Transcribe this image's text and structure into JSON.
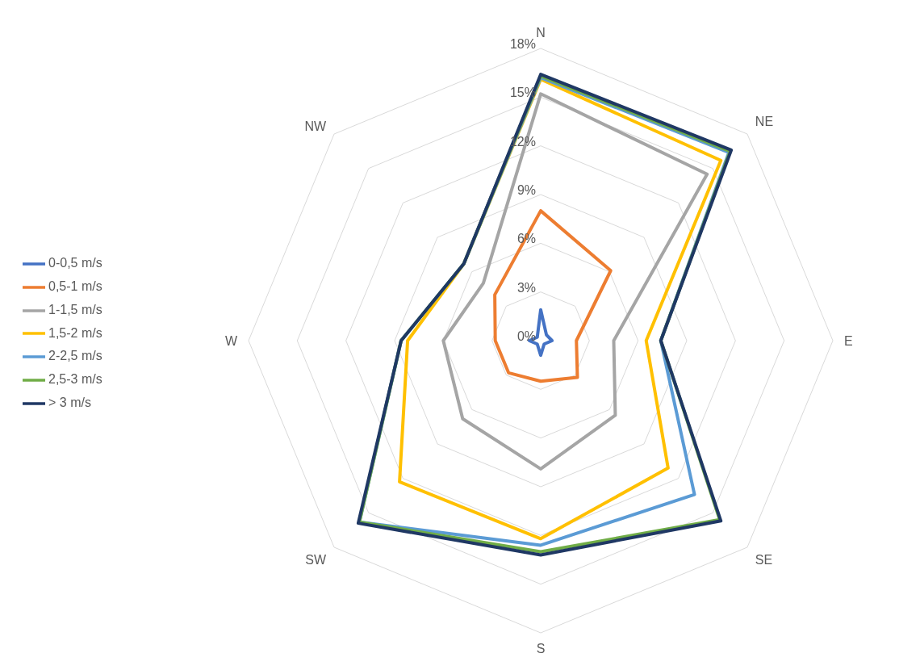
{
  "chart_data": {
    "type": "radar",
    "categories": [
      "N",
      "NE",
      "E",
      "SE",
      "S",
      "SW",
      "W",
      "NW"
    ],
    "series": [
      {
        "name": "0-0,5 m/s",
        "color": "#4472c4",
        "values": [
          1.9,
          0.5,
          0.7,
          0.3,
          0.9,
          0.3,
          0.7,
          0.3
        ]
      },
      {
        "name": "0,5-1 m/s",
        "color": "#ed7d31",
        "values": [
          8.0,
          6.1,
          2.2,
          3.2,
          2.5,
          2.8,
          2.8,
          4.0
        ]
      },
      {
        "name": "1-1,5 m/s",
        "color": "#a5a5a5",
        "values": [
          15.2,
          14.5,
          4.5,
          6.5,
          7.9,
          6.8,
          6.0,
          5.0
        ]
      },
      {
        "name": "1,5-2 m/s",
        "color": "#ffc000",
        "values": [
          16.1,
          15.7,
          6.5,
          11.1,
          12.2,
          12.3,
          8.2,
          6.7
        ]
      },
      {
        "name": "2-2,5 m/s",
        "color": "#5b9bd5",
        "values": [
          16.2,
          16.4,
          7.4,
          13.4,
          12.6,
          15.8,
          8.6,
          6.7
        ]
      },
      {
        "name": "2,5-3 m/s",
        "color": "#70ad47",
        "values": [
          16.3,
          16.5,
          7.4,
          15.6,
          13.0,
          15.8,
          8.6,
          6.7
        ]
      },
      {
        "name": "> 3 m/s",
        "color": "#1f3864",
        "values": [
          16.4,
          16.6,
          7.4,
          15.7,
          13.2,
          15.9,
          8.6,
          6.7
        ]
      }
    ],
    "ylim": [
      0,
      18
    ],
    "yticks": [
      {
        "value": 0,
        "label": "0%"
      },
      {
        "value": 3,
        "label": "3%"
      },
      {
        "value": 6,
        "label": "6%"
      },
      {
        "value": 9,
        "label": "9%"
      },
      {
        "value": 12,
        "label": "12%"
      },
      {
        "value": 15,
        "label": "15%"
      },
      {
        "value": 18,
        "label": "18%"
      }
    ],
    "grid": true,
    "legend": "left",
    "marker": "none",
    "line_style": "solid"
  }
}
